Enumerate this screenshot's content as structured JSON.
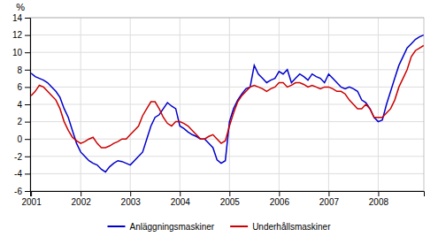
{
  "chart_data": {
    "type": "line",
    "ylabel": "%",
    "x": [
      2001.0,
      2001.083,
      2001.167,
      2001.25,
      2001.333,
      2001.417,
      2001.5,
      2001.583,
      2001.667,
      2001.75,
      2001.833,
      2001.917,
      2002.0,
      2002.083,
      2002.167,
      2002.25,
      2002.333,
      2002.417,
      2002.5,
      2002.583,
      2002.667,
      2002.75,
      2002.833,
      2002.917,
      2003.0,
      2003.083,
      2003.167,
      2003.25,
      2003.333,
      2003.417,
      2003.5,
      2003.583,
      2003.667,
      2003.75,
      2003.833,
      2003.917,
      2004.0,
      2004.083,
      2004.167,
      2004.25,
      2004.333,
      2004.417,
      2004.5,
      2004.583,
      2004.667,
      2004.75,
      2004.833,
      2004.917,
      2005.0,
      2005.083,
      2005.167,
      2005.25,
      2005.333,
      2005.417,
      2005.5,
      2005.583,
      2005.667,
      2005.75,
      2005.833,
      2005.917,
      2006.0,
      2006.083,
      2006.167,
      2006.25,
      2006.333,
      2006.417,
      2006.5,
      2006.583,
      2006.667,
      2006.75,
      2006.833,
      2006.917,
      2007.0,
      2007.083,
      2007.167,
      2007.25,
      2007.333,
      2007.417,
      2007.5,
      2007.583,
      2007.667,
      2007.75,
      2007.833,
      2007.917,
      2008.0,
      2008.083,
      2008.167,
      2008.25,
      2008.333,
      2008.417,
      2008.5,
      2008.583,
      2008.667,
      2008.75,
      2008.833,
      2008.917
    ],
    "series": [
      {
        "name": "Anläggningsmaskiner",
        "color": "#0000cc",
        "values": [
          7.6,
          7.2,
          7.0,
          6.8,
          6.5,
          6.0,
          5.5,
          4.8,
          3.5,
          2.5,
          1.0,
          -0.5,
          -1.5,
          -2.0,
          -2.5,
          -2.8,
          -3.0,
          -3.5,
          -3.8,
          -3.2,
          -2.8,
          -2.5,
          -2.6,
          -2.8,
          -3.0,
          -2.5,
          -2.0,
          -1.5,
          0.0,
          1.5,
          2.5,
          2.8,
          3.5,
          4.2,
          3.8,
          3.5,
          1.5,
          1.2,
          0.8,
          0.5,
          0.3,
          0.0,
          0.0,
          -0.5,
          -1.0,
          -2.4,
          -2.8,
          -2.5,
          2.0,
          3.5,
          4.5,
          5.2,
          5.8,
          6.0,
          8.5,
          7.5,
          7.0,
          6.5,
          6.8,
          7.0,
          7.8,
          7.5,
          8.0,
          6.5,
          7.0,
          7.5,
          7.2,
          6.8,
          7.5,
          7.2,
          7.0,
          6.5,
          7.5,
          7.0,
          6.5,
          6.0,
          5.8,
          6.0,
          5.8,
          5.5,
          4.5,
          4.2,
          3.5,
          2.5,
          2.0,
          2.2,
          4.0,
          5.5,
          7.0,
          8.5,
          9.5,
          10.5,
          11.0,
          11.5,
          11.8,
          12.0
        ]
      },
      {
        "name": "Underhållsmaskiner",
        "color": "#cc0000",
        "values": [
          5.0,
          5.5,
          6.2,
          6.0,
          5.5,
          5.0,
          4.5,
          3.5,
          2.0,
          1.0,
          0.2,
          -0.2,
          -0.5,
          -0.3,
          0.0,
          0.2,
          -0.5,
          -1.0,
          -1.0,
          -0.8,
          -0.5,
          -0.3,
          0.0,
          0.0,
          0.5,
          1.0,
          1.5,
          2.7,
          3.5,
          4.3,
          4.3,
          3.5,
          2.5,
          1.8,
          1.5,
          2.0,
          2.0,
          1.8,
          1.5,
          1.0,
          0.5,
          0.0,
          0.0,
          0.3,
          0.5,
          0.0,
          -0.5,
          -0.2,
          1.5,
          3.0,
          4.3,
          5.0,
          5.5,
          6.0,
          6.2,
          6.0,
          5.8,
          5.5,
          5.8,
          6.0,
          6.5,
          6.5,
          6.0,
          6.2,
          6.5,
          6.5,
          6.3,
          6.0,
          6.2,
          6.0,
          5.8,
          6.0,
          6.0,
          5.8,
          5.5,
          5.5,
          5.2,
          4.5,
          4.0,
          3.5,
          3.5,
          4.0,
          3.5,
          2.5,
          2.5,
          2.5,
          3.0,
          3.5,
          4.5,
          6.0,
          7.0,
          8.0,
          9.5,
          10.2,
          10.5,
          10.8
        ]
      }
    ],
    "xlim": [
      2000.98,
      2008.92
    ],
    "xticks": [
      2001,
      2002,
      2003,
      2004,
      2005,
      2006,
      2007,
      2008
    ],
    "ylim": [
      -6,
      14
    ],
    "yticks": [
      -6,
      -4,
      -2,
      0,
      2,
      4,
      6,
      8,
      10,
      12,
      14
    ],
    "grid": true,
    "legend": "bottom"
  }
}
